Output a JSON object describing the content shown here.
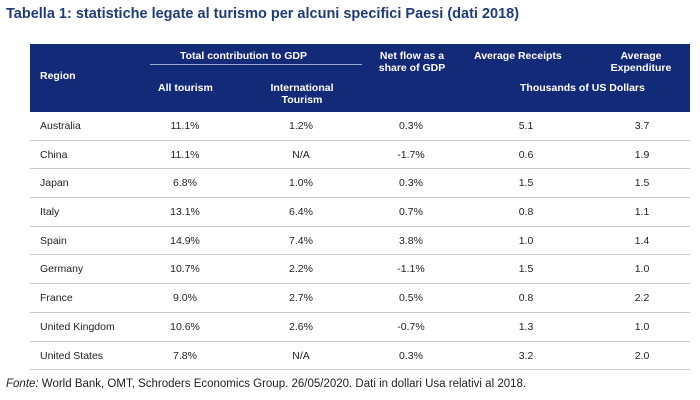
{
  "title": "Tabella 1: statistiche legate al turismo per alcuni specifici Paesi (dati 2018)",
  "header": {
    "region": "Region",
    "total_contribution": "Total contribution to GDP",
    "all_tourism": "All tourism",
    "international_tourism": "International Tourism",
    "net_flow": "Net flow as a share of GDP",
    "average_receipts": "Average Receipts",
    "average_expenditure": "Average Expenditure",
    "thousands": "Thousands of US Dollars"
  },
  "rows": [
    {
      "region": "Australia",
      "all": "11.1%",
      "intl": "1.2%",
      "net": "0.3%",
      "receipts": "5.1",
      "expenditure": "3.7"
    },
    {
      "region": "China",
      "all": "11.1%",
      "intl": "N/A",
      "net": "-1.7%",
      "receipts": "0.6",
      "expenditure": "1.9"
    },
    {
      "region": "Japan",
      "all": "6.8%",
      "intl": "1.0%",
      "net": "0.3%",
      "receipts": "1.5",
      "expenditure": "1.5"
    },
    {
      "region": "Italy",
      "all": "13.1%",
      "intl": "6.4%",
      "net": "0.7%",
      "receipts": "0.8",
      "expenditure": "1.1"
    },
    {
      "region": "Spain",
      "all": "14.9%",
      "intl": "7.4%",
      "net": "3.8%",
      "receipts": "1.0",
      "expenditure": "1.4"
    },
    {
      "region": "Germany",
      "all": "10.7%",
      "intl": "2.2%",
      "net": "-1.1%",
      "receipts": "1.5",
      "expenditure": "1.0"
    },
    {
      "region": "France",
      "all": "9.0%",
      "intl": "2.7%",
      "net": "0.5%",
      "receipts": "0.8",
      "expenditure": "2.2"
    },
    {
      "region": "United Kingdom",
      "all": "10.6%",
      "intl": "2.6%",
      "net": "-0.7%",
      "receipts": "1.3",
      "expenditure": "1.0"
    },
    {
      "region": "United States",
      "all": "7.8%",
      "intl": "N/A",
      "net": "0.3%",
      "receipts": "3.2",
      "expenditure": "2.0"
    }
  ],
  "footnote": {
    "label": "Fonte:",
    "text": " World Bank, OMT, Schroders Economics Group. 26/05/2020. Dati in dollari Usa relativi al 2018."
  }
}
